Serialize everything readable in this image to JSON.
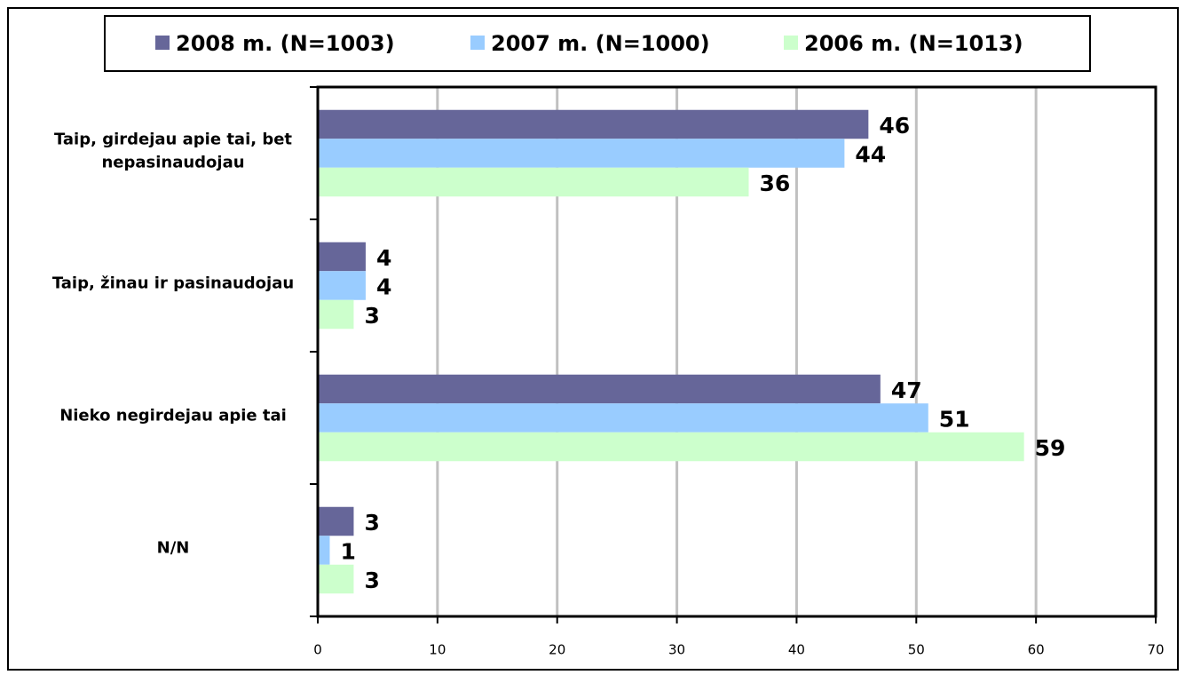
{
  "chart_data": {
    "type": "barh",
    "categories": [
      "Taip, girdejau apie tai, bet nepasinaudojau",
      "Taip, žinau ir pasinaudojau",
      "Nieko negirdejau apie tai",
      "N/N"
    ],
    "series": [
      {
        "name": "2008 m. (N=1003)",
        "color": "#666699",
        "values": [
          46,
          4,
          47,
          3
        ]
      },
      {
        "name": "2007 m. (N=1000)",
        "color": "#99ccff",
        "values": [
          44,
          4,
          51,
          1
        ]
      },
      {
        "name": "2006 m. (N=1013)",
        "color": "#ccffcc",
        "values": [
          36,
          3,
          59,
          3
        ]
      }
    ],
    "xlim": [
      0,
      70
    ],
    "xticks": [
      0,
      10,
      20,
      30,
      40,
      50,
      60,
      70
    ],
    "grid": true,
    "legend": "top"
  }
}
